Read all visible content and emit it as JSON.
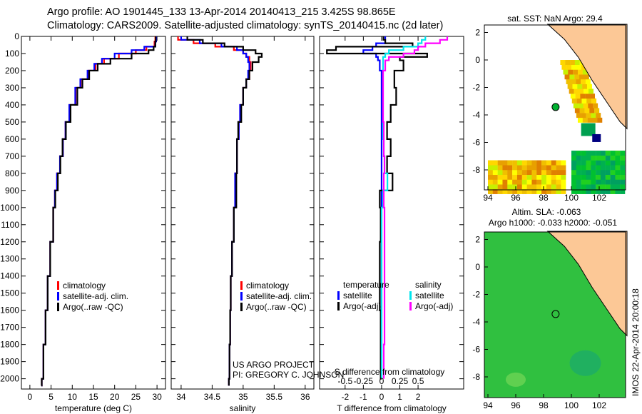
{
  "header": {
    "line1": "Argo profile: AO 1901445_133 13-Apr-2014 20140413_215 3.425S 98.865E",
    "line2": "Climatology: CARS2009. Satellite-adjusted climatology: synTS_20140415.nc (2d later)"
  },
  "credits": {
    "line1": "US ARGO PROJECT",
    "line2": "PI: GREGORY C. JOHNSON"
  },
  "footer_stamp": "IMOS 22-Apr-2014 20:00:18",
  "colors": {
    "climatology": "#ff0000",
    "satellite": "#0000ff",
    "argo": "#000000",
    "sal_sat": "#00e5ee",
    "sal_argo": "#ff00ff",
    "land": "#fcc896"
  },
  "chart_data": [
    {
      "type": "line",
      "id": "temp",
      "xlabel": "temperature (deg C)",
      "ylabel": "",
      "xlim": [
        -2,
        32
      ],
      "ylim": [
        0,
        2060
      ],
      "xticks": [
        0,
        5,
        10,
        15,
        20,
        25,
        30
      ],
      "yticks": [
        0,
        100,
        200,
        300,
        400,
        500,
        600,
        700,
        800,
        900,
        1000,
        1100,
        1200,
        1300,
        1400,
        1500,
        1600,
        1700,
        1800,
        1900,
        2000
      ],
      "depth": [
        0,
        30,
        60,
        80,
        100,
        130,
        160,
        200,
        250,
        300,
        400,
        500,
        600,
        700,
        800,
        900,
        1000,
        1200,
        1400,
        1600,
        1800,
        2000,
        2040
      ],
      "legend": [
        "climatology",
        "satellite-adj. clim.",
        "Argo(..raw -QC)"
      ],
      "series": [
        {
          "name": "climatology",
          "color": "#ff0000",
          "values": [
            29.6,
            29.4,
            27.5,
            25,
            21,
            17.5,
            15.5,
            13.8,
            12,
            10.8,
            9.3,
            8.4,
            7.8,
            7.1,
            6.4,
            5.9,
            5.5,
            4.8,
            4.2,
            3.7,
            3.2,
            2.8,
            2.7
          ]
        },
        {
          "name": "satellite-adj. clim.",
          "color": "#0000ff",
          "values": [
            29.8,
            29.6,
            27,
            24,
            20,
            17,
            15.2,
            13.6,
            11.9,
            10.7,
            9.3,
            8.4,
            7.8,
            7.1,
            6.4,
            5.9,
            5.5,
            4.8,
            4.2,
            3.7,
            3.2,
            2.8,
            2.7
          ]
        },
        {
          "name": "Argo(..raw -QC)",
          "color": "#000000",
          "values": [
            29.7,
            29.6,
            29.2,
            28,
            24,
            19,
            16,
            14,
            12.4,
            11.2,
            9.6,
            8.5,
            7.7,
            7.2,
            6.6,
            6,
            5.5,
            4.8,
            4.2,
            3.7,
            3.2,
            2.8,
            2.7
          ]
        }
      ]
    },
    {
      "type": "line",
      "id": "sal",
      "xlabel": "salinity",
      "xlim": [
        33.84,
        36.14
      ],
      "ylim": [
        0,
        2060
      ],
      "xticks": [
        34,
        34.5,
        35,
        35.5,
        36
      ],
      "depth": [
        0,
        20,
        40,
        60,
        80,
        100,
        120,
        150,
        200,
        250,
        300,
        400,
        500,
        600,
        800,
        1000,
        1200,
        1400,
        1600,
        1800,
        2000,
        2040
      ],
      "legend": [
        "climatology",
        "satellite-adj. clim.",
        "Argo(..raw -QC)"
      ],
      "series": [
        {
          "name": "climatology",
          "color": "#ff0000",
          "values": [
            33.95,
            34.2,
            34.55,
            34.85,
            35.0,
            35.05,
            35.1,
            35.12,
            35.1,
            35.05,
            35.0,
            34.95,
            34.93,
            34.9,
            34.87,
            34.85,
            34.82,
            34.8,
            34.79,
            34.78,
            34.77,
            34.77
          ]
        },
        {
          "name": "satellite-adj. clim.",
          "color": "#0000ff",
          "values": [
            34.0,
            34.3,
            34.65,
            34.9,
            35.0,
            35.05,
            35.08,
            35.1,
            35.08,
            35.05,
            35.0,
            34.95,
            34.93,
            34.9,
            34.87,
            34.85,
            34.82,
            34.8,
            34.79,
            34.78,
            34.77,
            34.77
          ]
        },
        {
          "name": "Argo(..raw -QC)",
          "color": "#000000",
          "values": [
            34.1,
            34.35,
            34.7,
            35.0,
            35.2,
            35.3,
            35.25,
            35.15,
            35.1,
            35.05,
            35.0,
            34.97,
            34.92,
            34.9,
            34.89,
            34.85,
            34.82,
            34.8,
            34.79,
            34.78,
            34.77,
            34.77
          ]
        }
      ]
    },
    {
      "type": "line",
      "id": "diff",
      "xlabel": "T difference from climatology",
      "xlabel2": "S difference from climatology",
      "xlim": [
        -3.4,
        4.5
      ],
      "ylim": [
        0,
        2060
      ],
      "xticks": [
        -2,
        -1,
        0,
        1,
        2
      ],
      "xticks2": [
        -0.5,
        -0.25,
        0,
        0.25,
        0.5
      ],
      "depth": [
        0,
        20,
        40,
        60,
        80,
        100,
        120,
        140,
        200,
        300,
        400,
        500,
        600,
        700,
        800,
        900,
        1000,
        1200,
        1400,
        1600,
        1800,
        2000
      ],
      "legend_titles": [
        "temperature",
        "salinity"
      ],
      "legend": [
        "satellite",
        "Argo(-adj)",
        "satellite",
        "Argo(-adj)"
      ],
      "series": [
        {
          "name": "T satellite",
          "color": "#0000ff",
          "unit": "T",
          "values": [
            0.2,
            0.2,
            -0.3,
            -0.5,
            -1.0,
            -0.3,
            -0.2,
            -0.1,
            0,
            0,
            0,
            0,
            0,
            0,
            0,
            0,
            0,
            0,
            0,
            0,
            0,
            0
          ]
        },
        {
          "name": "T Argo(-adj)",
          "color": "#000000",
          "unit": "T",
          "values": [
            0.1,
            0.2,
            1.7,
            -2.5,
            -3.0,
            2.5,
            1.0,
            1.2,
            0.7,
            0.8,
            0.5,
            0.3,
            0.5,
            0.3,
            0.6,
            -0.1,
            -0.05,
            -0.1,
            -0.1,
            -0.05,
            -0.05,
            0
          ]
        },
        {
          "name": "S satellite",
          "color": "#00e5ee",
          "unit": "S",
          "values": [
            0.6,
            0.55,
            0.5,
            0.3,
            0.1,
            0.05,
            0.02,
            0.02,
            0.02,
            0.02,
            0.02,
            0.02,
            0.03,
            0.04,
            0.08,
            0.02,
            0.0,
            0.0,
            0.0,
            0.0,
            0.0,
            0.0
          ]
        },
        {
          "name": "S Argo(-adj)",
          "color": "#ff00ff",
          "unit": "S",
          "values": [
            0.9,
            0.8,
            0.6,
            0.5,
            0.45,
            0.3,
            0.1,
            0.05,
            0.02,
            0.02,
            0.02,
            0.03,
            0.03,
            0.04,
            0.03,
            0.03,
            0.04,
            0.04,
            0.04,
            0.04,
            0.03,
            0.03
          ]
        }
      ]
    }
  ],
  "maps": [
    {
      "title": "sat. SST: NaN Argo: 29.4",
      "xticks": [
        94,
        96,
        98,
        100,
        102
      ],
      "yticks": [
        2,
        0,
        -2,
        -4,
        -6,
        -8
      ]
    },
    {
      "title1": "Altim. SLA: -0.063",
      "title2": "Argo h1000: -0.033 h2000: -0.051",
      "xticks": [
        94,
        96,
        98,
        100,
        102
      ],
      "yticks": [
        2,
        0,
        -2,
        -4,
        -6,
        -8
      ]
    }
  ]
}
